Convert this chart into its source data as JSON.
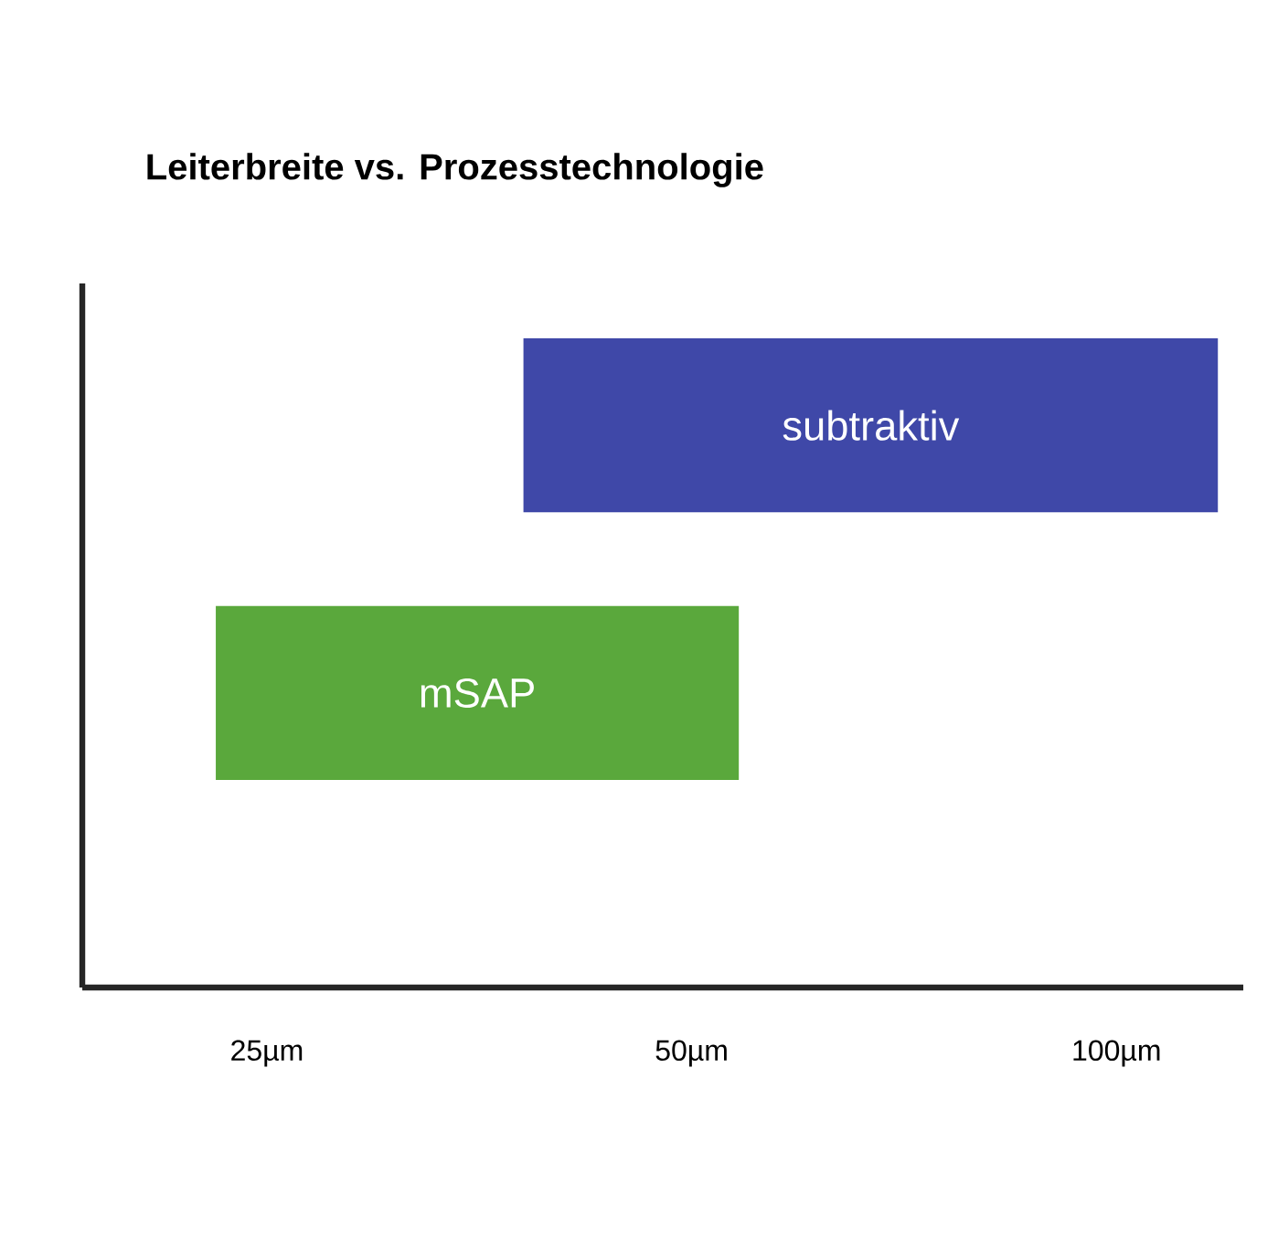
{
  "chart_data": {
    "type": "bar",
    "orientation": "horizontal",
    "title": "Leiterbreite vs. Prozesstechnologie",
    "categories": [
      "subtraktiv",
      "mSAP"
    ],
    "base": [
      38,
      23
    ],
    "values": [
      80,
      31
    ],
    "colors": [
      "#3f48a8",
      "#5aa83c"
    ],
    "log": "x",
    "xlim": [
      18.5,
      123
    ],
    "xticks": [
      {
        "value": 25,
        "label": "25µm"
      },
      {
        "value": 50,
        "label": "50µm"
      },
      {
        "value": 100,
        "label": "100µm"
      }
    ]
  }
}
